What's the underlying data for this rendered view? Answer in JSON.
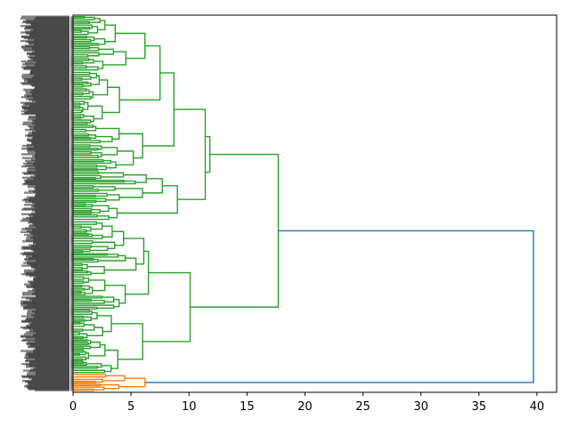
{
  "chart_data": {
    "type": "dendrogram",
    "orientation": "left",
    "title": "",
    "xlabel": "",
    "ylabel": "",
    "xlim": [
      0,
      41.7
    ],
    "xticks": [
      0,
      5,
      10,
      15,
      20,
      25,
      30,
      35,
      40
    ],
    "xtick_labels": [
      "0",
      "5",
      "10",
      "15",
      "20",
      "25",
      "30",
      "35",
      "40"
    ],
    "grid": false,
    "leaf_count_estimate": 400,
    "colors": {
      "above_threshold": "#1f77b4",
      "cluster_1": "#2ca02c",
      "cluster_2": "#ff7f0e"
    },
    "merges": [
      {
        "height": 39.7,
        "children": [
          "cluster_1",
          "cluster_2"
        ],
        "color": "#1f77b4"
      },
      {
        "height": 17.7,
        "cluster": "cluster_1",
        "color": "#2ca02c"
      },
      {
        "height": 11.8,
        "cluster": "cluster_1",
        "color": "#2ca02c"
      },
      {
        "height": 11.4,
        "cluster": "cluster_1",
        "color": "#2ca02c"
      },
      {
        "height": 10.1,
        "cluster": "cluster_1",
        "color": "#2ca02c"
      },
      {
        "height": 9.0,
        "cluster": "cluster_1",
        "color": "#2ca02c"
      },
      {
        "height": 8.7,
        "cluster": "cluster_1",
        "color": "#2ca02c"
      },
      {
        "height": 7.7,
        "cluster": "cluster_1",
        "color": "#2ca02c"
      },
      {
        "height": 7.5,
        "cluster": "cluster_1",
        "color": "#2ca02c"
      },
      {
        "height": 6.2,
        "cluster": "cluster_2",
        "color": "#ff7f0e"
      },
      {
        "height": 6.1,
        "cluster": "cluster_1",
        "color": "#2ca02c"
      },
      {
        "height": 6.0,
        "cluster": "cluster_1",
        "color": "#2ca02c"
      }
    ]
  }
}
